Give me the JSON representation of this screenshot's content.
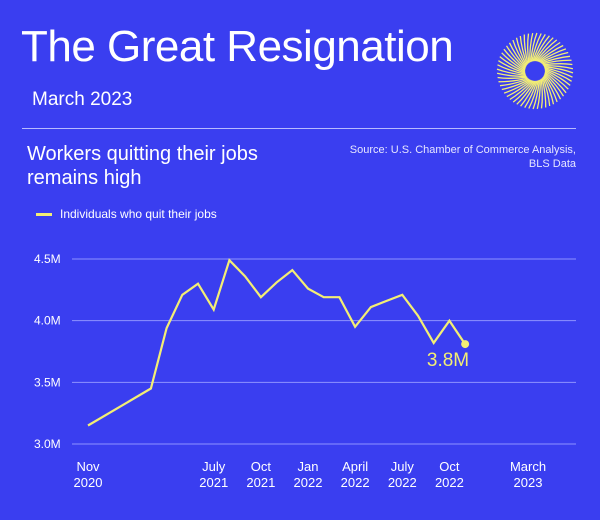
{
  "header": {
    "title": "The Great Resignation",
    "subtitle": "March 2023"
  },
  "chart_heading": [
    "Workers quitting their jobs",
    "remains high"
  ],
  "source": [
    "Source: U.S. Chamber of Commerce Analysis,",
    "BLS Data"
  ],
  "logo_icon": "sunburst-icon",
  "colors": {
    "background": "#3a3ef0",
    "line": "#f3ee74",
    "gridline": "#8f93ff",
    "text": "#ffffff"
  },
  "chart_data": {
    "type": "line",
    "title": "Workers quitting their jobs remains high",
    "legend": {
      "position": "top-left"
    },
    "grid": true,
    "xlabel": "",
    "ylabel": "",
    "ylim": [
      3.0,
      4.5
    ],
    "y_ticks": [
      {
        "value": 3.0,
        "label": "3.0M"
      },
      {
        "value": 3.5,
        "label": "3.5M"
      },
      {
        "value": 4.0,
        "label": "4.0M"
      },
      {
        "value": 4.5,
        "label": "4.5M"
      }
    ],
    "x_ticks": [
      {
        "date": "2020-11",
        "line1": "Nov",
        "line2": "2020"
      },
      {
        "date": "2021-07",
        "line1": "July",
        "line2": "2021"
      },
      {
        "date": "2021-10",
        "line1": "Oct",
        "line2": "2021"
      },
      {
        "date": "2022-01",
        "line1": "Jan",
        "line2": "2022"
      },
      {
        "date": "2022-04",
        "line1": "April",
        "line2": "2022"
      },
      {
        "date": "2022-07",
        "line1": "July",
        "line2": "2022"
      },
      {
        "date": "2022-10",
        "line1": "Oct",
        "line2": "2022"
      },
      {
        "date": "2023-03",
        "line1": "March",
        "line2": "2023"
      }
    ],
    "series": [
      {
        "name": "Individuals who quit their jobs",
        "unit": "millions",
        "points": [
          {
            "x": "2020-11",
            "y": 3.15
          },
          {
            "x": "2021-03",
            "y": 3.45
          },
          {
            "x": "2021-04",
            "y": 3.94
          },
          {
            "x": "2021-05",
            "y": 4.21
          },
          {
            "x": "2021-06",
            "y": 4.3
          },
          {
            "x": "2021-07",
            "y": 4.09
          },
          {
            "x": "2021-08",
            "y": 4.49
          },
          {
            "x": "2021-09",
            "y": 4.36
          },
          {
            "x": "2021-10",
            "y": 4.19
          },
          {
            "x": "2021-11",
            "y": 4.31
          },
          {
            "x": "2021-12",
            "y": 4.41
          },
          {
            "x": "2022-01",
            "y": 4.26
          },
          {
            "x": "2022-02",
            "y": 4.19
          },
          {
            "x": "2022-03",
            "y": 4.19
          },
          {
            "x": "2022-04",
            "y": 3.95
          },
          {
            "x": "2022-05",
            "y": 4.11
          },
          {
            "x": "2022-06",
            "y": 4.16
          },
          {
            "x": "2022-07",
            "y": 4.21
          },
          {
            "x": "2022-08",
            "y": 4.04
          },
          {
            "x": "2022-09",
            "y": 3.82
          },
          {
            "x": "2022-10",
            "y": 4.0
          },
          {
            "x": "2022-11",
            "y": 3.81
          }
        ]
      }
    ],
    "annotations": [
      {
        "label": "3.8M",
        "x": "2022-11",
        "y": 3.81
      }
    ]
  }
}
